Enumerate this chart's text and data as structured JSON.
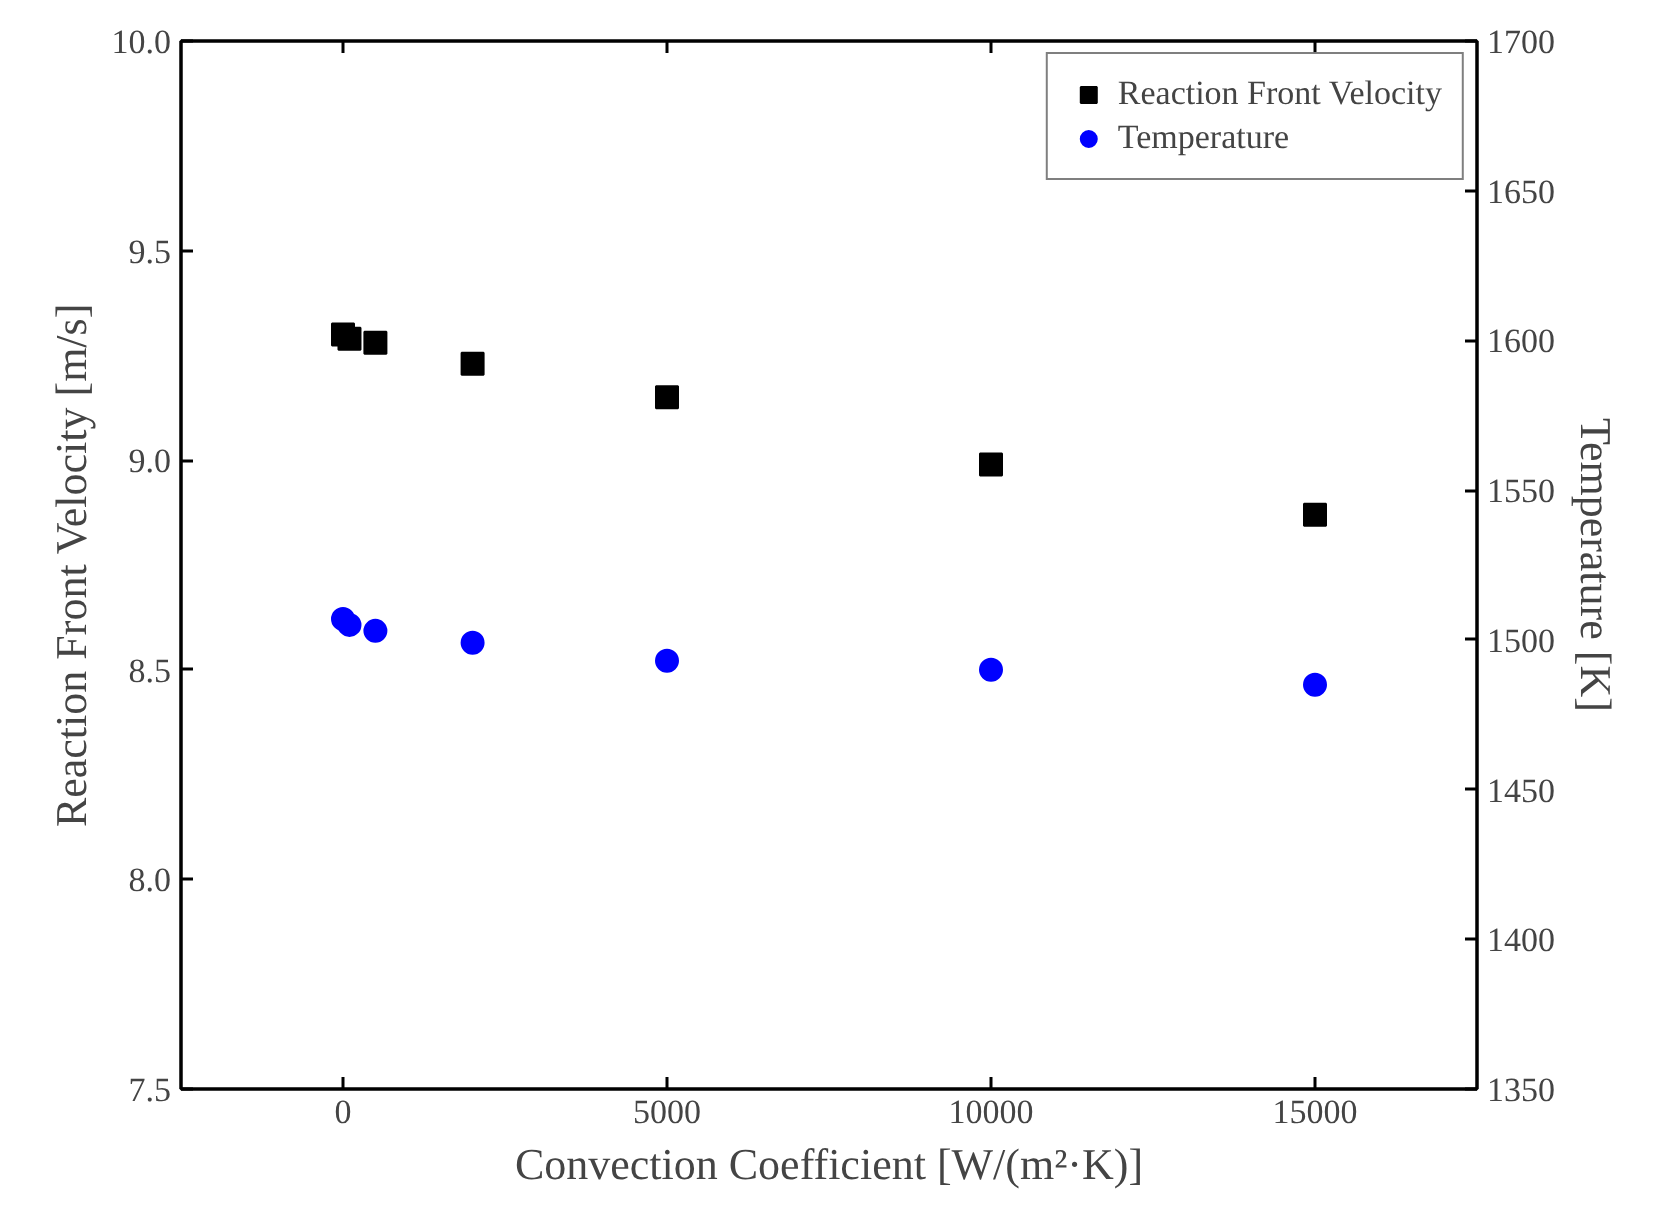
{
  "chart_data": {
    "type": "scatter",
    "xlabel": "Convection Coefficient [W/(m²·K)]",
    "ylabel": "Reaction Front Velocity [m/s]",
    "y2label": "Temperature [K]",
    "xlim": [
      -2500,
      17500
    ],
    "xticks": [
      0,
      5000,
      10000,
      15000
    ],
    "ylim": [
      7.5,
      10.0
    ],
    "yticks": [
      {
        "value": 7.5,
        "label": "7.5"
      },
      {
        "value": 8.0,
        "label": "8.0"
      },
      {
        "value": 8.5,
        "label": "8.5"
      },
      {
        "value": 9.0,
        "label": "9.0"
      },
      {
        "value": 9.5,
        "label": "9.5"
      },
      {
        "value": 10.0,
        "label": "10.0"
      }
    ],
    "y2lim": [
      1350,
      1700
    ],
    "y2ticks": [
      1350,
      1400,
      1450,
      1500,
      1550,
      1600,
      1650,
      1700
    ],
    "grid": false,
    "legend": "top right",
    "series": [
      {
        "name": "Reaction Front Velocity",
        "color": "#000000",
        "marker": "square",
        "x": [
          0,
          100,
          500,
          2000,
          5000,
          10000,
          15000
        ],
        "values": [
          9.3,
          9.29,
          9.28,
          9.23,
          9.15,
          8.99,
          8.87
        ]
      },
      {
        "name": "Temperature",
        "color": "#0000ff",
        "marker": "circle",
        "axis": "y2",
        "x": [
          0,
          100,
          500,
          2000,
          5000,
          10000,
          15000
        ],
        "values": [
          1507,
          1505,
          1503,
          1499,
          1493,
          1490,
          1485
        ]
      }
    ]
  }
}
